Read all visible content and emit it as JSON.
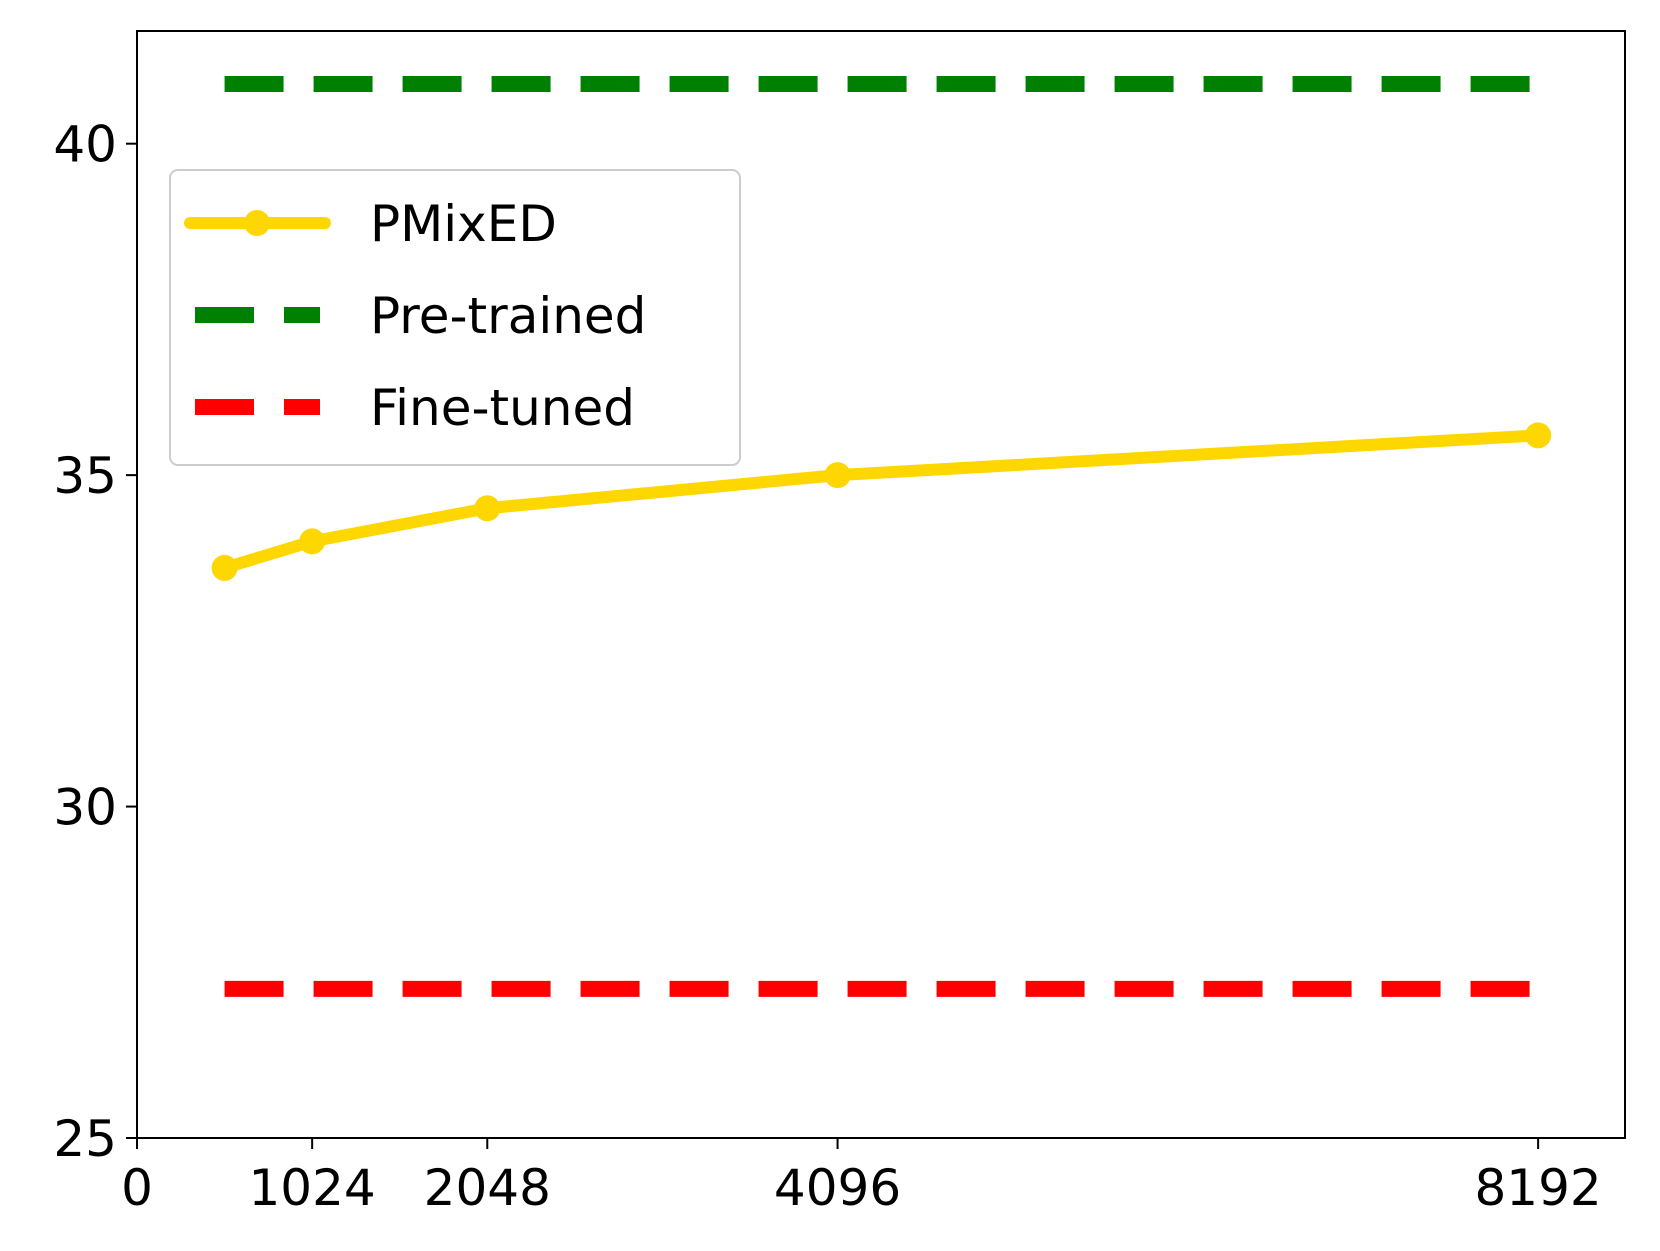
{
  "chart_data": {
    "type": "line",
    "title": "",
    "xlabel": "",
    "ylabel": "",
    "xlim": [
      0,
      8700
    ],
    "ylim": [
      25,
      41.7
    ],
    "xticks": [
      0,
      1024,
      2048,
      4096,
      8192
    ],
    "yticks": [
      25,
      30,
      35,
      40
    ],
    "grid": false,
    "legend_position": "upper-left",
    "series": [
      {
        "name": "PMixED",
        "style": "solid-marker",
        "color": "#FFD700",
        "x": [
          512,
          1024,
          2048,
          4096,
          8192
        ],
        "y": [
          33.6,
          34.0,
          34.5,
          35.0,
          35.6
        ]
      },
      {
        "name": "Pre-trained",
        "style": "dashed",
        "color": "#008000",
        "x": [
          512,
          8192
        ],
        "y": [
          40.9,
          40.9
        ]
      },
      {
        "name": "Fine-tuned",
        "style": "dashed",
        "color": "#FF0000",
        "x": [
          512,
          8192
        ],
        "y": [
          27.25,
          27.25
        ]
      }
    ]
  }
}
